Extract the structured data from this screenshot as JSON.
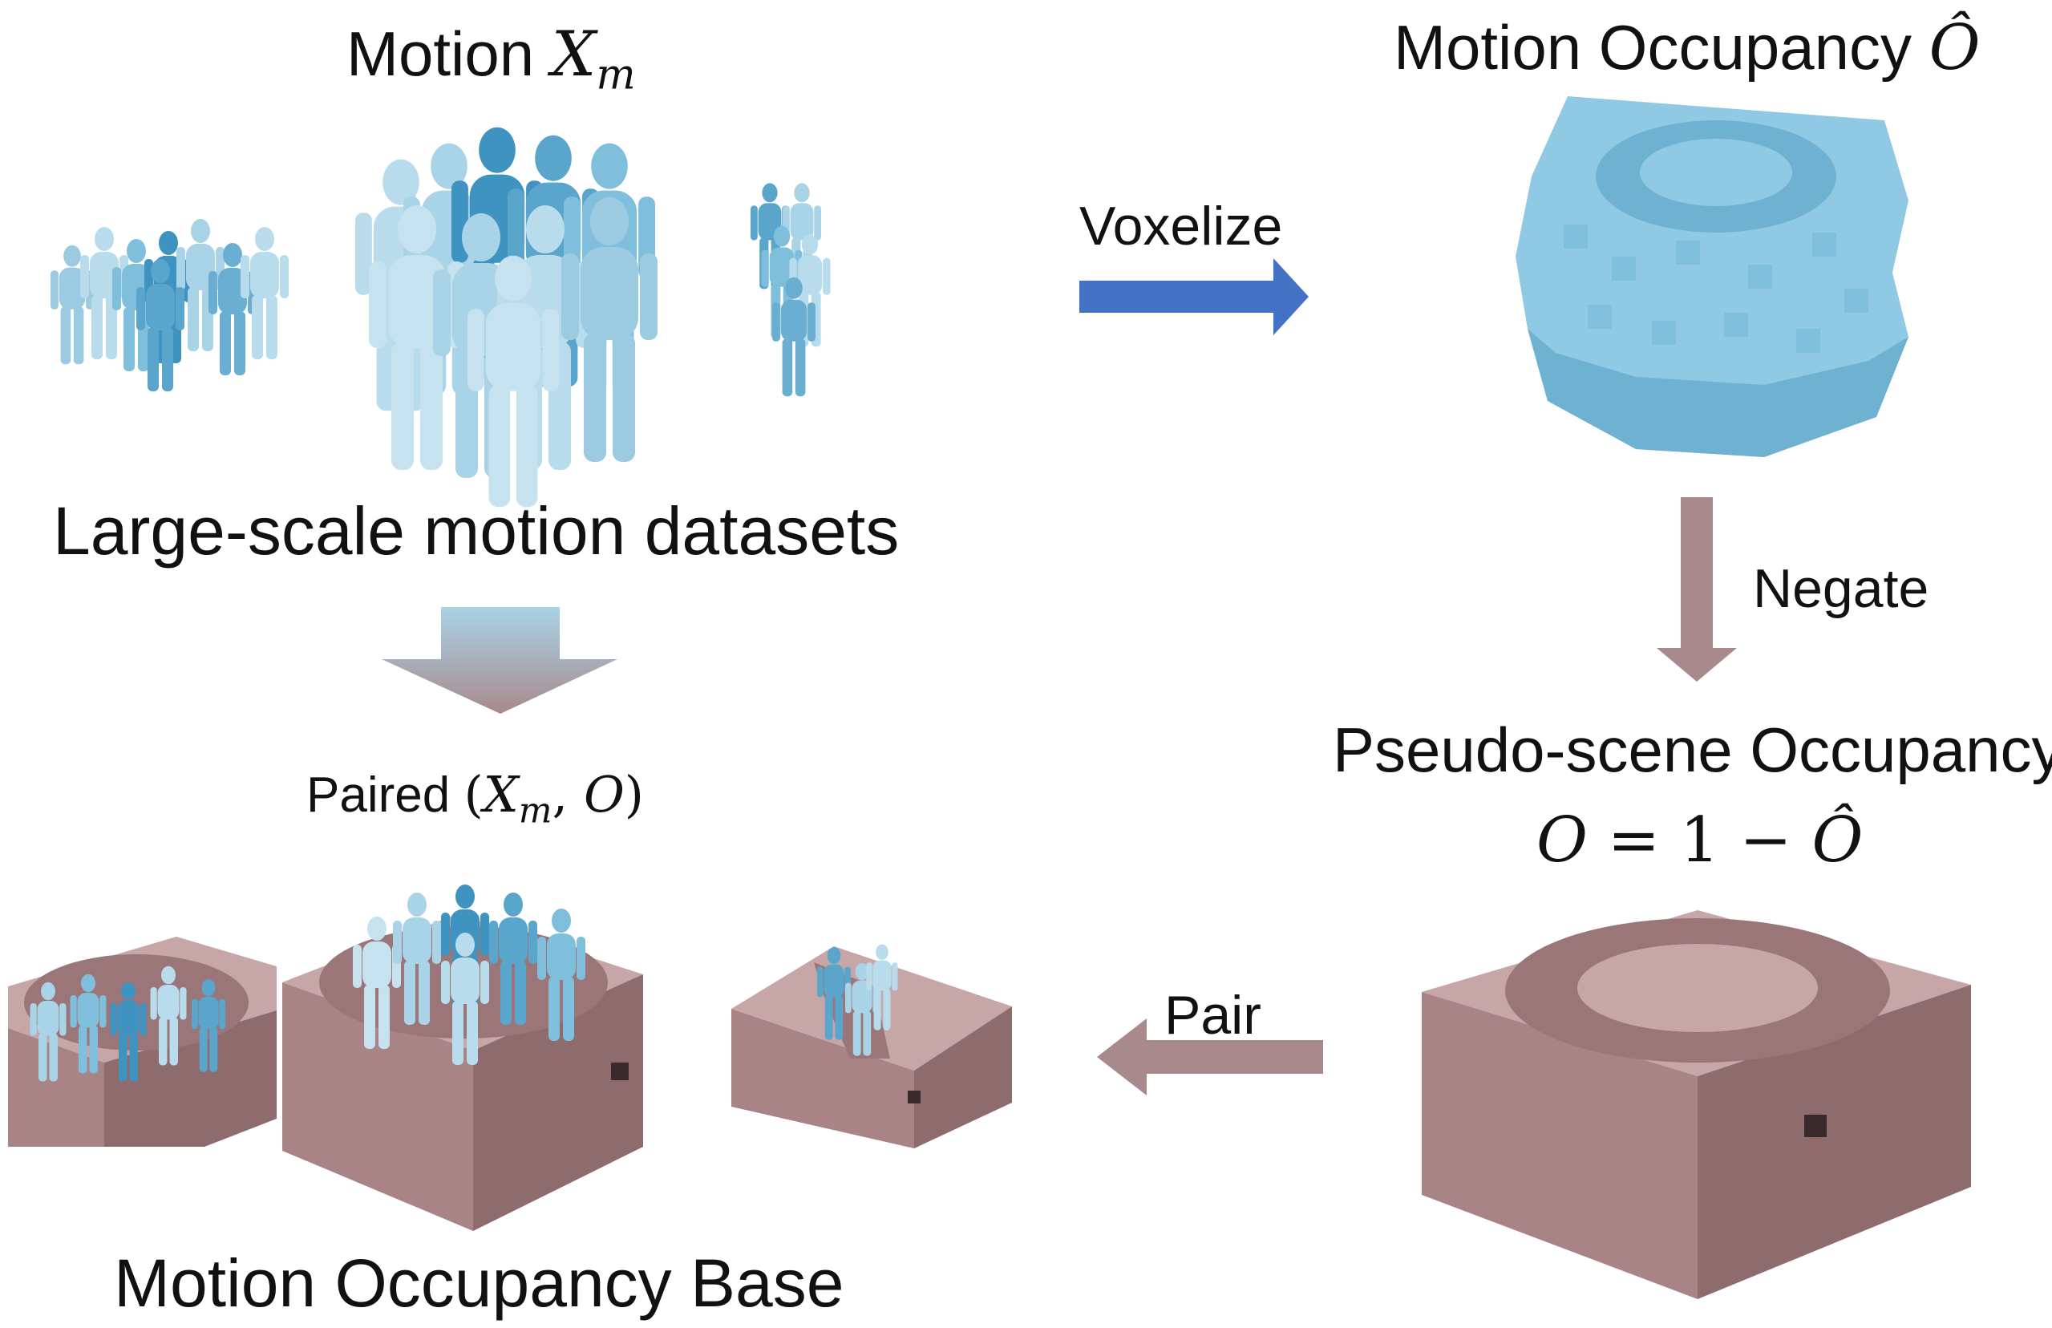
{
  "colors": {
    "human_light": "#a9d3e6",
    "human_mid": "#7fbfdc",
    "human_dark": "#3f93c0",
    "voxel": "#8fc9e3",
    "voxel_shade": "#6fb1d1",
    "scene_top": "#c7a6a8",
    "scene_side": "#a98486",
    "scene_side_dark": "#8e6c6e",
    "arrow_blue": "#4472c4",
    "arrow_mauve": "#a88a8c"
  },
  "labels": {
    "motion_prefix": "Motion ",
    "motion_var": "X",
    "motion_sub": "m",
    "large_scale": "Large-scale motion datasets",
    "voxelize": "Voxelize",
    "motion_occ_prefix": "Motion Occupancy ",
    "motion_occ_var": "Ô",
    "negate": "Negate",
    "pseudo_scene": "Pseudo-scene Occupancy",
    "formula_lhs": "O",
    "formula_eq": " = 1 − ",
    "formula_rhs": "Ô",
    "paired_prefix": "Paired ",
    "paired_open": "(",
    "paired_x": "X",
    "paired_sub": "m",
    "paired_comma": ", ",
    "paired_o": "O",
    "paired_close": ")",
    "pair": "Pair",
    "base": "Motion Occupancy Base"
  }
}
